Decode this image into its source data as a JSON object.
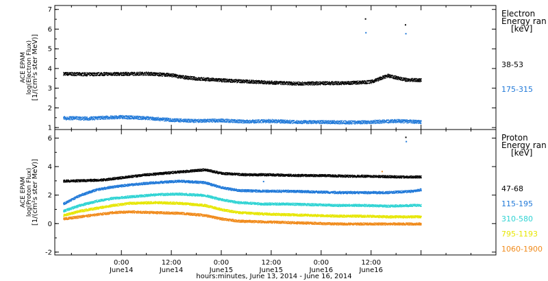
{
  "chart_data": [
    {
      "type": "scatter",
      "panel": "electron",
      "ylabel": [
        "ACE EPAM",
        "log(Electron Flux)",
        "[1/(cm²s ster MeV)]"
      ],
      "ylim": [
        0.9,
        7.2
      ],
      "yticks": [
        1,
        2,
        3,
        4,
        5,
        6,
        7
      ],
      "legend_title": [
        "Electron",
        "Energy ran",
        "[keV]"
      ],
      "series": [
        {
          "name": "38-53",
          "color": "#000000",
          "x": [
            -14,
            -8,
            -4,
            0,
            6,
            12,
            14,
            18,
            24,
            30,
            36,
            42,
            48,
            54,
            60,
            62,
            64,
            66,
            68,
            72
          ],
          "y": [
            3.75,
            3.72,
            3.74,
            3.74,
            3.76,
            3.68,
            3.6,
            3.5,
            3.42,
            3.36,
            3.3,
            3.25,
            3.27,
            3.28,
            3.34,
            3.5,
            3.65,
            3.55,
            3.45,
            3.42
          ]
        },
        {
          "name": "175-315",
          "color": "#1f78d8",
          "x": [
            -14,
            -8,
            -4,
            0,
            6,
            12,
            18,
            24,
            30,
            36,
            42,
            48,
            54,
            60,
            66,
            72
          ],
          "y": [
            1.5,
            1.48,
            1.52,
            1.55,
            1.5,
            1.4,
            1.35,
            1.38,
            1.32,
            1.35,
            1.3,
            1.3,
            1.28,
            1.3,
            1.35,
            1.3
          ]
        }
      ],
      "outliers": [
        {
          "x": 58.5,
          "y": 6.55,
          "color": "#000000"
        },
        {
          "x": 58.6,
          "y": 5.85,
          "color": "#1f78d8"
        },
        {
          "x": 68.1,
          "y": 6.25,
          "color": "#000000"
        },
        {
          "x": 68.2,
          "y": 5.8,
          "color": "#1f78d8"
        }
      ]
    },
    {
      "type": "scatter",
      "panel": "proton",
      "ylabel": [
        "ACE EPAM",
        "log(Proton Flux)",
        "[1/(cm²s ster MeV)]"
      ],
      "ylim": [
        -2.2,
        6.6
      ],
      "yticks": [
        -2,
        0,
        2,
        4,
        6
      ],
      "legend_title": [
        "Proton",
        "Energy ran",
        "[keV]"
      ],
      "series": [
        {
          "name": "47-68",
          "color": "#000000",
          "x": [
            -14,
            -8,
            -4,
            0,
            6,
            12,
            18,
            20,
            24,
            30,
            36,
            42,
            48,
            54,
            60,
            66,
            72
          ],
          "y": [
            3.0,
            3.05,
            3.1,
            3.25,
            3.45,
            3.6,
            3.75,
            3.8,
            3.55,
            3.45,
            3.45,
            3.4,
            3.4,
            3.35,
            3.35,
            3.3,
            3.3
          ]
        },
        {
          "name": "115-195",
          "color": "#1f78d8",
          "x": [
            -14,
            -10,
            -6,
            -2,
            2,
            8,
            14,
            20,
            24,
            28,
            34,
            40,
            46,
            52,
            58,
            64,
            70,
            72
          ],
          "y": [
            1.4,
            2.0,
            2.4,
            2.6,
            2.75,
            2.9,
            3.0,
            2.9,
            2.55,
            2.35,
            2.3,
            2.3,
            2.25,
            2.2,
            2.2,
            2.2,
            2.3,
            2.4
          ]
        },
        {
          "name": "310-580",
          "color": "#2ed3d3",
          "x": [
            -14,
            -10,
            -6,
            -2,
            2,
            8,
            14,
            20,
            24,
            28,
            34,
            40,
            46,
            52,
            58,
            64,
            70,
            72
          ],
          "y": [
            0.9,
            1.3,
            1.6,
            1.8,
            1.9,
            2.05,
            2.1,
            2.0,
            1.7,
            1.5,
            1.4,
            1.4,
            1.35,
            1.3,
            1.3,
            1.25,
            1.3,
            1.3
          ]
        },
        {
          "name": "795-1193",
          "color": "#e6e600",
          "x": [
            -14,
            -10,
            -6,
            -2,
            2,
            8,
            14,
            20,
            24,
            28,
            34,
            40,
            46,
            52,
            58,
            64,
            70,
            72
          ],
          "y": [
            0.6,
            0.9,
            1.1,
            1.3,
            1.45,
            1.5,
            1.45,
            1.3,
            1.0,
            0.8,
            0.7,
            0.65,
            0.6,
            0.55,
            0.55,
            0.5,
            0.5,
            0.5
          ]
        },
        {
          "name": "1060-1900",
          "color": "#f08a1a",
          "x": [
            -14,
            -10,
            -6,
            -2,
            2,
            8,
            14,
            20,
            24,
            28,
            34,
            40,
            46,
            52,
            58,
            64,
            70,
            72
          ],
          "y": [
            0.35,
            0.5,
            0.65,
            0.8,
            0.85,
            0.8,
            0.75,
            0.6,
            0.35,
            0.2,
            0.15,
            0.1,
            0.05,
            0.0,
            0.0,
            0.0,
            0.0,
            0.0
          ]
        }
      ],
      "outliers": [
        {
          "x": 68.2,
          "y": 6.1,
          "color": "#000000"
        },
        {
          "x": 68.3,
          "y": 5.8,
          "color": "#1f78d8"
        },
        {
          "x": 62.5,
          "y": 3.7,
          "color": "#f08a1a"
        },
        {
          "x": 34.0,
          "y": 3.0,
          "color": "#1f78d8"
        }
      ]
    }
  ],
  "xaxis": {
    "xlim": [
      -16,
      90
    ],
    "major_ticks": [
      0,
      12,
      24,
      36,
      48,
      60,
      72
    ],
    "minor_ticks": [
      -12,
      -6,
      6,
      18,
      30,
      42,
      54,
      66,
      78,
      84
    ],
    "tick_labels": [
      {
        "x": 0,
        "time": "0:00",
        "date": "June14"
      },
      {
        "x": 12,
        "time": "12:00",
        "date": "June14"
      },
      {
        "x": 24,
        "time": "0:00",
        "date": "June15"
      },
      {
        "x": 36,
        "time": "12:00",
        "date": "June15"
      },
      {
        "x": 48,
        "time": "0:00",
        "date": "June16"
      },
      {
        "x": 60,
        "time": "12:00",
        "date": "June16"
      }
    ],
    "xlabel": "hours:minutes, June 13, 2014 - June 16, 2014"
  }
}
